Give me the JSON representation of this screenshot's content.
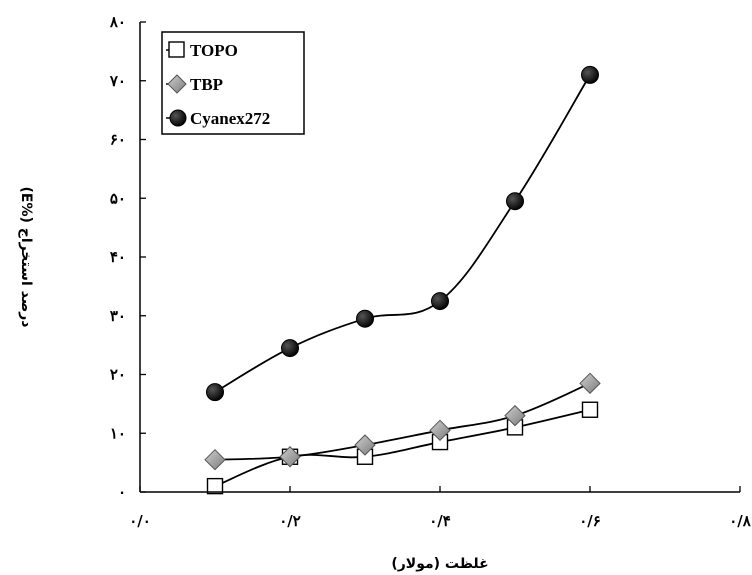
{
  "chart_data": {
    "type": "line",
    "xlabel": "غلظت (مولار)",
    "ylabel": "درصد استخراج (%E)",
    "xlim": [
      0,
      0.8
    ],
    "ylim": [
      0,
      80
    ],
    "x_ticks": [
      0,
      0.2,
      0.4,
      0.6,
      0.8
    ],
    "y_ticks": [
      0,
      10,
      20,
      30,
      40,
      50,
      60,
      70,
      80
    ],
    "x_tick_labels": [
      "۰/۰",
      "۰/۲",
      "۰/۴",
      "۰/۶",
      "۰/۸"
    ],
    "y_tick_labels": [
      "۰",
      "۱۰",
      "۲۰",
      "۳۰",
      "۴۰",
      "۵۰",
      "۶۰",
      "۷۰",
      "۸۰"
    ],
    "legend_position": "top-left",
    "grid": false,
    "series": [
      {
        "name": "TOPO",
        "marker": "square",
        "color": "#ffffff",
        "x": [
          0.1,
          0.2,
          0.3,
          0.4,
          0.5,
          0.6
        ],
        "y": [
          1,
          6,
          6,
          8.5,
          11,
          14
        ]
      },
      {
        "name": "TBP",
        "marker": "diamond",
        "color": "#9a9a9a",
        "x": [
          0.1,
          0.2,
          0.3,
          0.4,
          0.5,
          0.6
        ],
        "y": [
          5.5,
          6,
          8,
          10.5,
          13,
          18.5
        ]
      },
      {
        "name": "Cyanex272",
        "marker": "circle",
        "color": "#000000",
        "x": [
          0.1,
          0.2,
          0.3,
          0.4,
          0.5,
          0.6
        ],
        "y": [
          17,
          24.5,
          29.5,
          32.5,
          49.5,
          71
        ]
      }
    ]
  }
}
